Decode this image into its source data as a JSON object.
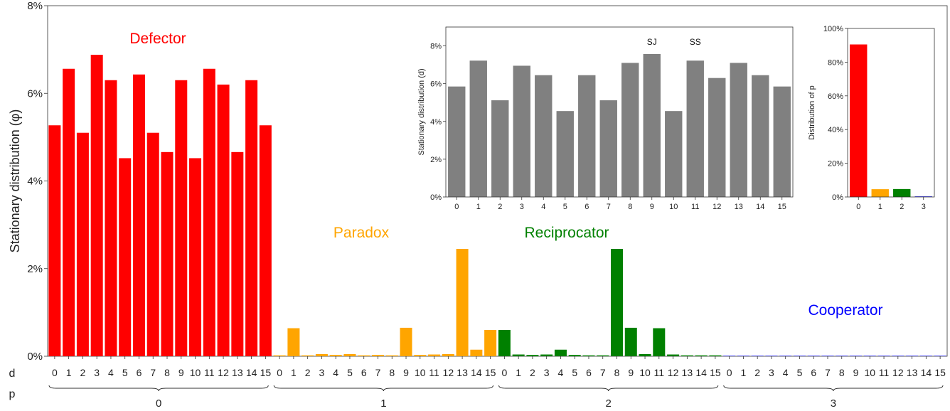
{
  "chart_data": [
    {
      "id": "main",
      "type": "bar",
      "ylabel": "Stationary distribution (φ)",
      "ylim": [
        0,
        8
      ],
      "yunit": "%",
      "yticks": [
        0,
        2,
        4,
        6,
        8
      ],
      "ytick_labels": [
        "0%",
        "2%",
        "4%",
        "6%",
        "8%"
      ],
      "row_label_d": "d",
      "row_label_p": "p",
      "d_ticks": [
        "0",
        "1",
        "2",
        "3",
        "4",
        "5",
        "6",
        "7",
        "8",
        "9",
        "10",
        "11",
        "12",
        "13",
        "14",
        "15"
      ],
      "groups": [
        {
          "p": "0",
          "name": "Defector",
          "color": "#ff0000",
          "values": [
            5.27,
            6.56,
            5.1,
            6.88,
            6.3,
            4.52,
            6.43,
            5.1,
            4.66,
            6.3,
            4.52,
            6.56,
            6.2,
            4.66,
            6.3,
            5.27
          ]
        },
        {
          "p": "1",
          "name": "Paradox",
          "color": "#ffa500",
          "values": [
            0.02,
            0.64,
            0.02,
            0.05,
            0.03,
            0.05,
            0.02,
            0.03,
            0.02,
            0.65,
            0.03,
            0.04,
            0.05,
            2.45,
            0.15,
            0.6
          ]
        },
        {
          "p": "2",
          "name": "Reciprocator",
          "color": "#008000",
          "values": [
            0.6,
            0.04,
            0.03,
            0.04,
            0.15,
            0.03,
            0.02,
            0.02,
            2.45,
            0.65,
            0.05,
            0.64,
            0.04,
            0.02,
            0.02,
            0.02
          ]
        },
        {
          "p": "3",
          "name": "Cooperator",
          "color": "#0000ff",
          "values": [
            0.01,
            0.01,
            0.01,
            0.01,
            0.01,
            0.01,
            0.01,
            0.01,
            0.01,
            0.01,
            0.01,
            0.01,
            0.01,
            0.01,
            0.01,
            0.01
          ]
        }
      ]
    },
    {
      "id": "inset_d",
      "type": "bar",
      "ylabel": "Stationary distribution (d)",
      "ylim": [
        0,
        9
      ],
      "yunit": "%",
      "yticks": [
        0,
        2,
        4,
        6,
        8
      ],
      "ytick_labels": [
        "0%",
        "2%",
        "4%",
        "6%",
        "8%"
      ],
      "categories": [
        "0",
        "1",
        "2",
        "3",
        "4",
        "5",
        "6",
        "7",
        "8",
        "9",
        "10",
        "11",
        "12",
        "13",
        "14",
        "15"
      ],
      "values": [
        5.85,
        7.22,
        5.12,
        6.95,
        6.45,
        4.55,
        6.45,
        5.12,
        7.1,
        7.57,
        4.55,
        7.22,
        6.3,
        7.1,
        6.45,
        5.85
      ],
      "color": "#808080",
      "annotations": [
        {
          "category": "9",
          "text": "SJ"
        },
        {
          "category": "11",
          "text": "SS"
        }
      ]
    },
    {
      "id": "inset_p",
      "type": "bar",
      "ylabel": "Distribution of p",
      "ylim": [
        0,
        100
      ],
      "yunit": "%",
      "yticks": [
        0,
        20,
        40,
        60,
        80,
        100
      ],
      "ytick_labels": [
        "0%",
        "20%",
        "40%",
        "60%",
        "80%",
        "100%"
      ],
      "categories": [
        "0",
        "1",
        "2",
        "3"
      ],
      "values": [
        90.5,
        4.6,
        4.7,
        0.2
      ],
      "colors": [
        "#ff0000",
        "#ffa500",
        "#008000",
        "#0000ff"
      ]
    }
  ]
}
